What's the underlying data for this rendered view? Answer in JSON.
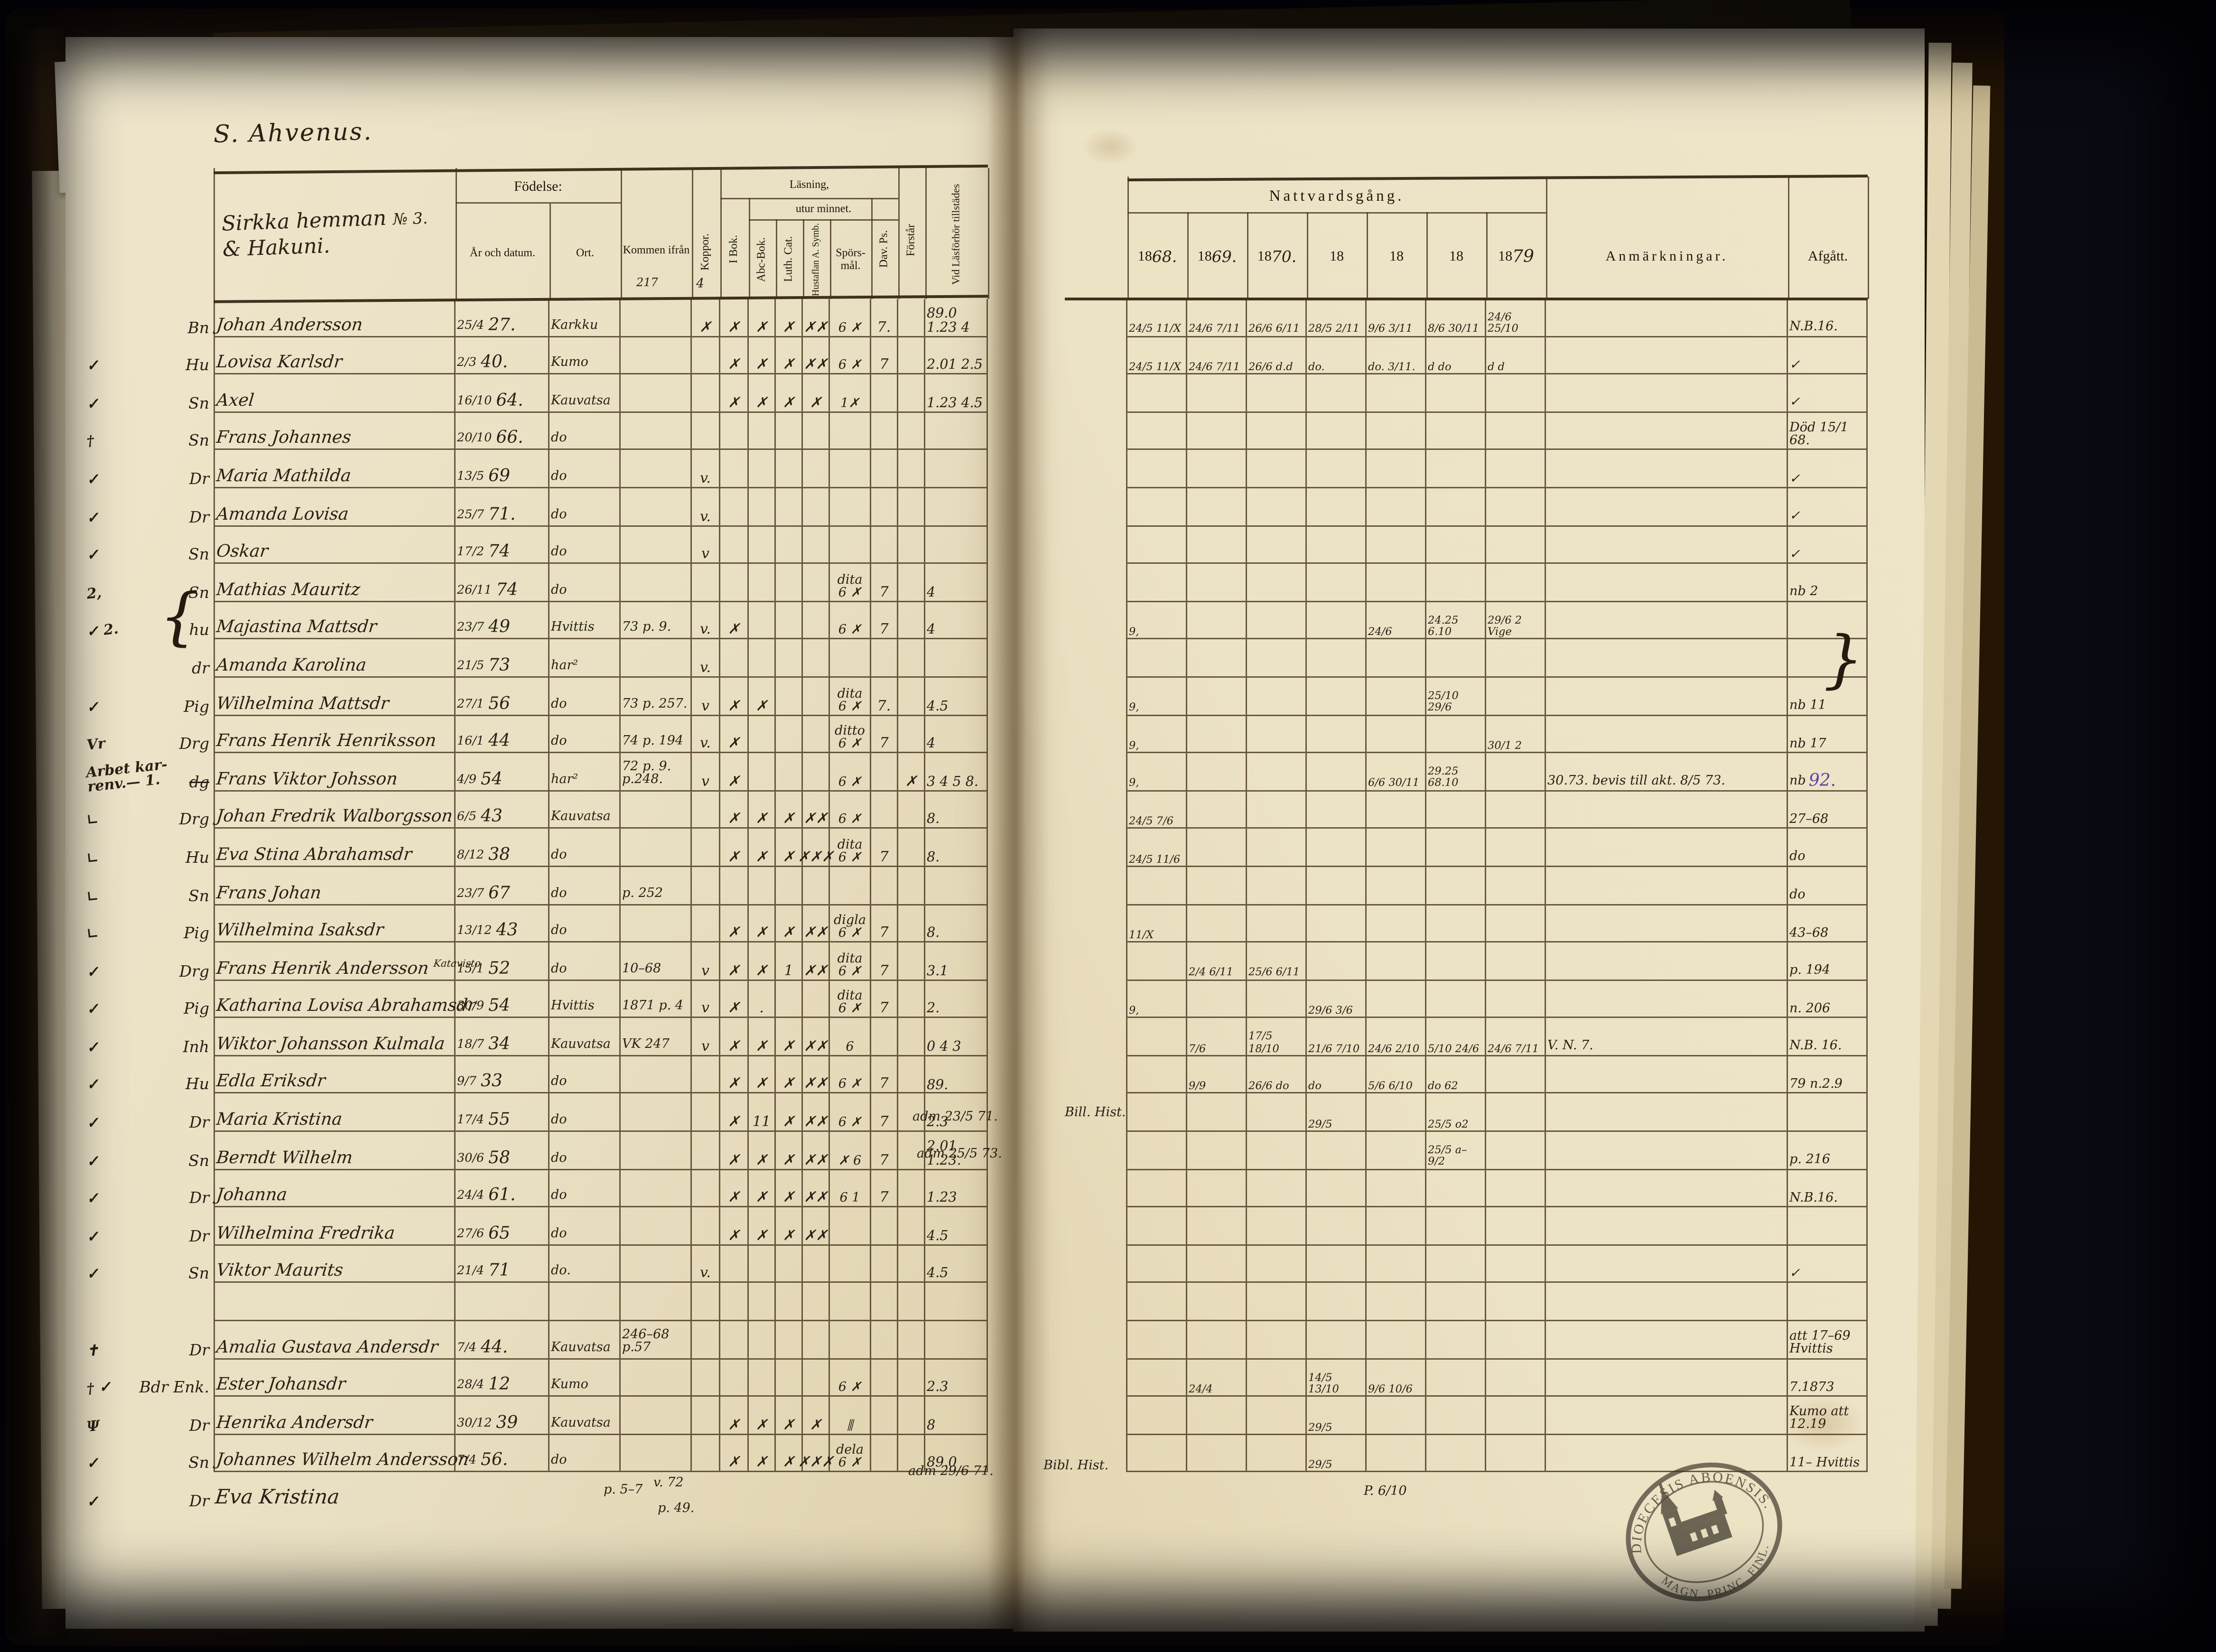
{
  "page_title": "S. Ahvenus.",
  "colors": {
    "ink": "#2a2014",
    "purple_ink": "#5b3fa8",
    "paper": "#e9dfc2"
  },
  "left_table": {
    "household1": "Sirkka hemman",
    "household_no": "№ 3.",
    "household2": "& Hakuni.",
    "fodelse": "Födelse:",
    "ar_och_datum": "År och datum.",
    "ort": "Ort.",
    "kommen": "Kommen ifrån",
    "koppor": "Koppor.",
    "lasning": "Läsning,",
    "utur": "utur minnet.",
    "ibok": "I Bok.",
    "abc": "Abc-Bok.",
    "luth": "Luth. Cat.",
    "hustaflan": "Hustaflan A. Symb.",
    "spors": "Spörs-mål.",
    "dav": "Dav. Ps.",
    "forstar": "Förstår",
    "vid": "Vid Läsförhör tillstädes"
  },
  "right_table": {
    "title": "Nattvardsgång.",
    "years_printed": [
      "18",
      "18",
      "18",
      "18",
      "18",
      "18",
      "18"
    ],
    "years_hw": [
      "68.",
      "69.",
      "70.",
      "",
      "",
      "",
      "79"
    ],
    "anm": "Anmärkningar.",
    "afgatt": "Afgått."
  },
  "rows": [
    {
      "chk": "",
      "m": "Bn",
      "n": "Johan Andersson",
      "d": "25/4",
      "y": "27.",
      "o": "Karkku",
      "kp": "✗",
      "b1": "✗",
      "b2": "✗",
      "b3": "✗",
      "b4": "✗✗",
      "sp": "6 ✗",
      "dv": "7.",
      "vt": "89.0 1.23 4",
      "com": [
        "24/5 11/X",
        "24/6 7/11",
        "26/6 6/11",
        "28/5 2/11",
        "9/6 3/11",
        "8/6 30/11",
        "24/6 25/10"
      ],
      "af": "N.B.16."
    },
    {
      "chk": "✓",
      "m": "Hu",
      "n": "Lovisa Karlsdr",
      "d": "2/3",
      "y": "40.",
      "o": "Kumo",
      "b1": "✗",
      "b2": "✗",
      "b3": "✗",
      "b4": "✗✗",
      "sp": "6 ✗",
      "dv": "7",
      "vt": "2.01 2.5",
      "com": [
        "24/5 11/X",
        "24/6 7/11",
        "26/6 d.d",
        "do.",
        "do. 3/11.",
        "d do",
        "d d"
      ],
      "af": "✓"
    },
    {
      "chk": "✓",
      "m": "Sn",
      "n": "Axel",
      "d": "16/10",
      "y": "64.",
      "o": "Kauvatsa",
      "b1": "✗",
      "b2": "✗",
      "b3": "✗",
      "b4": "✗",
      "sp": "1✗",
      "vt": "1.23 4.5",
      "af": "✓"
    },
    {
      "chk": "†",
      "m": "Sn",
      "n": "Frans Johannes",
      "d": "20/10",
      "y": "66.",
      "o": "do",
      "af": "Död 15/1 68."
    },
    {
      "chk": "✓",
      "m": "Dr",
      "n": "Maria Mathilda",
      "d": "13/5",
      "y": "69",
      "o": "do",
      "kp": "v.",
      "af": "✓"
    },
    {
      "chk": "✓",
      "m": "Dr",
      "n": "Amanda Lovisa",
      "d": "25/7",
      "y": "71.",
      "o": "do",
      "kp": "v.",
      "af": "✓"
    },
    {
      "chk": "✓",
      "m": "Sn",
      "n": "Oskar",
      "d": "17/2",
      "y": "74",
      "o": "do",
      "kp": "v",
      "af": "✓"
    },
    {
      "chk": "2,",
      "m": "Sn",
      "n": "Mathias Mauritz",
      "d": "26/11",
      "y": "74",
      "o": "do",
      "sp": "dita 6 ✗",
      "dv": "7",
      "vt": "4",
      "af": "nb 2"
    },
    {
      "chk": "✓ 2.",
      "m": "hu",
      "n": "Majastina Mattsdr",
      "d": "23/7",
      "y": "49",
      "o": "Hvittis",
      "o2": "73 p. 9.",
      "kp": "v.",
      "b1": "✗",
      "sp": "6 ✗",
      "dv": "7",
      "vt": "4",
      "com": [
        "9,",
        "",
        "",
        "",
        "24/6",
        "24.25 6.10",
        "29/6 2 Vige"
      ],
      "af": ""
    },
    {
      "chk": "",
      "m": "dr",
      "n": "Amanda Karolina",
      "d": "21/5",
      "y": "73",
      "o": "har²",
      "kp": "v.",
      "af": ""
    },
    {
      "chk": "✓",
      "m": "Pig",
      "n": "Wilhelmina Mattsdr",
      "d": "27/1",
      "y": "56",
      "o": "do",
      "o2": "73 p. 257.",
      "kp": "v",
      "b1": "✗",
      "b2": "✗",
      "sp": "dita 6 ✗",
      "dv": "7.",
      "vt": "4.5",
      "com": [
        "9,",
        "",
        "",
        "",
        "",
        "25/10 29/6",
        ""
      ],
      "af": "nb 11"
    },
    {
      "chk": "Vr",
      "m": "Drg",
      "n": "Frans Henrik Henriksson",
      "d": "16/1",
      "y": "44",
      "o": "do",
      "o2": "74 p. 194",
      "kp": "v.",
      "b1": "✗",
      "sp": "ditto 6 ✗",
      "dv": "7",
      "vt": "4",
      "com": [
        "9,",
        "",
        "",
        "",
        "",
        "",
        "30/1 2"
      ],
      "af": "nb 17"
    },
    {
      "chk": "Arbet kar- renv.— 1.",
      "m": "dg",
      "mstrike": true,
      "n": "Frans Viktor Johsson",
      "d": "4/9",
      "y": "54",
      "o": "har²",
      "o2": "72 p. 9. p.248.",
      "kp": "v",
      "b1": "✗",
      "sp": "6 ✗",
      "fo": "✗",
      "vt": "3 4 5 8.",
      "com": [
        "9,",
        "",
        "",
        "",
        "6/6 30/11",
        "29.25 68.10",
        ""
      ],
      "anm": "30.73. bevis till akt. 8/5 73.",
      "af": "nb",
      "afp": "92."
    },
    {
      "chk": "∟",
      "m": "Drg",
      "n": "Johan Fredrik Walborgsson",
      "d": "6/5",
      "y": "43",
      "o": "Kauvatsa",
      "b1": "✗",
      "b2": "✗",
      "b3": "✗",
      "b4": "✗✗",
      "sp": "6 ✗",
      "vt": "8.",
      "com": [
        "24/5 7/6",
        "",
        "",
        "",
        "",
        "",
        ""
      ],
      "af": "27–68"
    },
    {
      "chk": "∟",
      "m": "Hu",
      "n": "Eva Stina Abrahamsdr",
      "d": "8/12",
      "y": "38",
      "o": "do",
      "b1": "✗",
      "b2": "✗",
      "b3": "✗",
      "b4": "✗✗✗",
      "sp": "dita 6 ✗",
      "dv": "7",
      "vt": "8.",
      "com": [
        "24/5 11/6",
        "",
        "",
        "",
        "",
        "",
        ""
      ],
      "af": "do"
    },
    {
      "chk": "∟",
      "m": "Sn",
      "n": "Frans Johan",
      "d": "23/7",
      "y": "67",
      "o": "do",
      "o2": "p. 252",
      "af": "do"
    },
    {
      "chk": "∟",
      "m": "Pig",
      "n": "Wilhelmina Isaksdr",
      "d": "13/12",
      "y": "43",
      "o": "do",
      "b1": "✗",
      "b2": "✗",
      "b3": "✗",
      "b4": "✗✗",
      "sp": "digla 6 ✗",
      "dv": "7",
      "vt": "8.",
      "com": [
        "11/X",
        "",
        "",
        "",
        "",
        "",
        ""
      ],
      "af": "43–68"
    },
    {
      "chk": "✓",
      "m": "Drg",
      "n": "Frans Henrik Andersson",
      "sup": "Katavisto",
      "d": "15/1",
      "y": "52",
      "o": "do",
      "o2": "10–68",
      "kp": "v",
      "b1": "✗",
      "b2": "✗",
      "b3": "1",
      "b4": "✗✗",
      "sp": "dita 6 ✗",
      "dv": "7",
      "vt": "3.1",
      "com": [
        "",
        "2/4 6/11",
        "25/6 6/11",
        "",
        "",
        "",
        ""
      ],
      "af": "p. 194"
    },
    {
      "chk": "✓",
      "m": "Pig",
      "n": "Katharina Lovisa Abrahamsdr",
      "d": "30/9",
      "y": "54",
      "o": "Hvittis",
      "o2": "1871 p. 4",
      "kp": "v",
      "b1": "✗",
      "b2": ".",
      "sp": "dita 6 ✗",
      "dv": "7",
      "vt": "2.",
      "com": [
        "9,",
        "",
        "",
        "29/6 3/6",
        "",
        "",
        ""
      ],
      "af": "n. 206"
    },
    {
      "chk": "✓",
      "m": "Inh",
      "n": "Wiktor Johansson Kulmala",
      "d": "18/7",
      "y": "34",
      "o": "Kauvatsa",
      "o2": "VK 247",
      "kp": "v",
      "b1": "✗",
      "b2": "✗",
      "b3": "✗",
      "b4": "✗✗",
      "sp": "6",
      "vt": "0 4 3",
      "com": [
        "",
        "7/6",
        "17/5 18/10",
        "21/6 7/10",
        "24/6 2/10",
        "5/10 24/6",
        "24/6 7/11"
      ],
      "anm": "V. N. 7.",
      "af": "N.B. 16."
    },
    {
      "chk": "✓",
      "m": "Hu",
      "n": "Edla Eriksdr",
      "d": "9/7",
      "y": "33",
      "o": "do",
      "b1": "✗",
      "b2": "✗",
      "b3": "✗",
      "b4": "✗✗",
      "sp": "6 ✗",
      "dv": "7",
      "vt": "89.",
      "com": [
        "",
        "9/9",
        "26/6 do",
        "do",
        "5/6 6/10",
        "do 62",
        ""
      ],
      "af": "79 n.2.9"
    },
    {
      "chk": "✓",
      "m": "Dr",
      "n": "Maria Kristina",
      "d": "17/4",
      "y": "55",
      "o": "do",
      "b1": "✗",
      "b2": "11",
      "b3": "✗",
      "b4": "✗✗",
      "sp": "6 ✗",
      "dv": "7",
      "vt": "2.3",
      "com": [
        "",
        "",
        "",
        "29/5",
        "",
        "25/5 o2",
        ""
      ],
      "af": ""
    },
    {
      "chk": "✓",
      "m": "Sn",
      "n": "Berndt Wilhelm",
      "d": "30/6",
      "y": "58",
      "o": "do",
      "b1": "✗",
      "b2": "✗",
      "b3": "✗",
      "b4": "✗✗",
      "sp": "✗ 6",
      "dv": "7",
      "vt": "2.01 1.23.",
      "com": [
        "",
        "",
        "",
        "",
        "",
        "25/5 a– 9/2",
        ""
      ],
      "af": "p. 216"
    },
    {
      "chk": "✓",
      "m": "Dr",
      "n": "Johanna",
      "d": "24/4",
      "y": "61.",
      "o": "do",
      "b1": "✗",
      "b2": "✗",
      "b3": "✗",
      "b4": "✗✗",
      "sp": "6 1",
      "dv": "7",
      "vt": "1.23",
      "af": "N.B.16."
    },
    {
      "chk": "✓",
      "m": "Dr",
      "n": "Wilhelmina Fredrika",
      "d": "27/6",
      "y": "65",
      "o": "do",
      "b1": "✗",
      "b2": "✗",
      "b3": "✗",
      "b4": "✗✗",
      "vt": "4.5",
      "af": ""
    },
    {
      "chk": "✓",
      "m": "Sn",
      "n": "Viktor Maurits",
      "d": "21/4",
      "y": "71",
      "o": "do.",
      "kp": "v.",
      "vt": "4.5",
      "af": "✓"
    },
    {
      "chk": "",
      "m": "",
      "n": "",
      "d": "",
      "y": "",
      "o": "",
      "af": ""
    },
    {
      "chk": "✝",
      "m": "Dr",
      "n": "Amalia Gustava Andersdr",
      "d": "7/4",
      "y": "44.",
      "o": "Kauvatsa",
      "o2": "246–68 p.57",
      "af": "att 17–69 Hvittis"
    },
    {
      "chk": "† ✓",
      "m": "Bdr Enk.",
      "n": "Ester Johansdr",
      "d": "28/4",
      "y": "12",
      "o": "Kumo",
      "sp": "6 ✗",
      "vt": "2.3",
      "com": [
        "",
        "24/4",
        "",
        "14/5 13/10",
        "9/6 10/6",
        "",
        ""
      ],
      "af": "7.1873"
    },
    {
      "chk": "Ψ",
      "m": "Dr",
      "n": "Henrika Andersdr",
      "d": "30/12",
      "y": "39",
      "o": "Kauvatsa",
      "b1": "✗",
      "b2": "✗",
      "b3": "✗",
      "b4": "✗",
      "sp": "⫼",
      "vt": "8",
      "com": [
        "",
        "",
        "",
        "29/5",
        "",
        "",
        ""
      ],
      "af": "Kumo att 12.19"
    },
    {
      "chk": "✓",
      "m": "Sn",
      "n": "Johannes Wilhelm Andersson",
      "d": "7/4",
      "y": "56.",
      "o": "do",
      "b1": "✗",
      "b2": "✗",
      "b3": "✗",
      "b4": "✗✗✗",
      "sp": "dela 6 ✗",
      "vt": "89.0",
      "com": [
        "",
        "",
        "",
        "29/5",
        "",
        "",
        ""
      ],
      "af": "11– Hvittis"
    },
    {
      "below": true,
      "chk": "✓",
      "m": "Dr",
      "n": "Eva Kristina"
    }
  ],
  "notes": [
    {
      "t": "p. 5–7"
    },
    {
      "t": "v. 72"
    },
    {
      "t": "p. 49."
    },
    {
      "t": "adm 29/6 71."
    },
    {
      "t": "Bibl. Hist."
    },
    {
      "t": "P. 6/10"
    },
    {
      "t": "adm 23/5 71."
    },
    {
      "t": "Bill. Hist."
    },
    {
      "t": "adm 25/5 73."
    },
    {
      "t": "{"
    },
    {
      "t": "}"
    },
    {
      "t": "217"
    },
    {
      "t": "4"
    }
  ],
  "stamp": {
    "line_top": "DIOECESIS ABOENSIS.",
    "line_bottom": "MAGN. PRINC. FINL."
  }
}
